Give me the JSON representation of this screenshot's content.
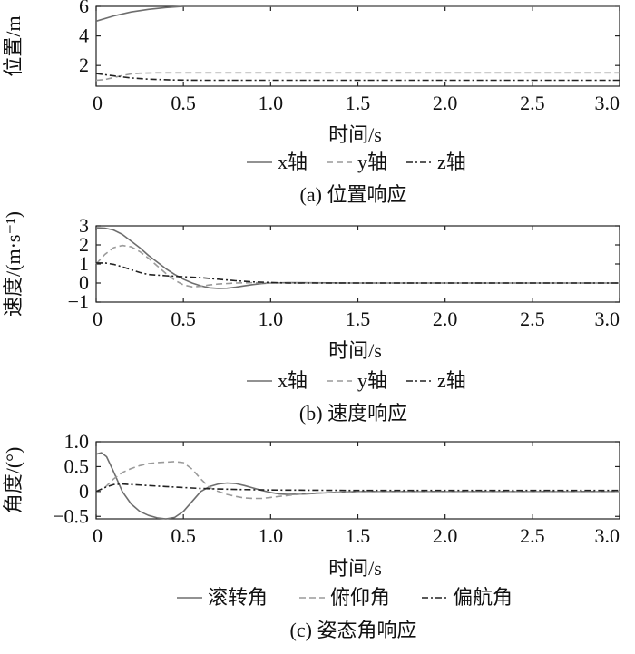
{
  "chart_data": [
    {
      "type": "line",
      "xlabel": "时间/s",
      "ylabel": "位置/m",
      "caption": "(a) 位置响应",
      "xlim": [
        0,
        3.0
      ],
      "ylim": [
        0.6,
        6.0
      ],
      "xticks": [
        "0",
        "0.5",
        "1.0",
        "1.5",
        "2.0",
        "2.5",
        "3.0"
      ],
      "yticks": [
        {
          "value": 2,
          "label": "2"
        },
        {
          "value": 4,
          "label": "4"
        },
        {
          "value": 6,
          "label": "6"
        }
      ],
      "legend_position": "bottom-center",
      "series": [
        {
          "name": "x轴",
          "style": "solid",
          "color": "#6e6e6e",
          "x": [
            0,
            0.1,
            0.2,
            0.3,
            0.4,
            0.5,
            1.0,
            2.0,
            3.0
          ],
          "y": [
            5.0,
            5.35,
            5.62,
            5.8,
            5.92,
            6.0,
            6.0,
            6.0,
            6.0
          ]
        },
        {
          "name": "y轴",
          "style": "dashed",
          "color": "#9a9a9a",
          "x": [
            0,
            0.05,
            0.1,
            0.15,
            0.2,
            0.25,
            0.35,
            0.5,
            1.0,
            2.0,
            3.0
          ],
          "y": [
            1.0,
            1.05,
            1.18,
            1.32,
            1.43,
            1.48,
            1.5,
            1.5,
            1.5,
            1.5,
            1.5
          ]
        },
        {
          "name": "z轴",
          "style": "dashdot",
          "color": "#222222",
          "x": [
            0,
            0.1,
            0.2,
            0.3,
            0.45,
            0.6,
            1.0,
            2.0,
            3.0
          ],
          "y": [
            1.45,
            1.3,
            1.16,
            1.07,
            1.02,
            1.0,
            1.0,
            1.0,
            1.0
          ]
        }
      ]
    },
    {
      "type": "line",
      "xlabel": "时间/s",
      "ylabel": "速度/(m·s⁻¹)",
      "caption": "(b) 速度响应",
      "xlim": [
        0,
        3.0
      ],
      "ylim": [
        -1,
        3
      ],
      "xticks": [
        "0",
        "0.5",
        "1.0",
        "1.5",
        "2.0",
        "2.5",
        "3.0"
      ],
      "yticks": [
        {
          "value": -1,
          "label": "−1"
        },
        {
          "value": 0,
          "label": "0"
        },
        {
          "value": 1,
          "label": "1"
        },
        {
          "value": 2,
          "label": "2"
        },
        {
          "value": 3,
          "label": "3"
        }
      ],
      "legend_position": "bottom-right",
      "series": [
        {
          "name": "x轴",
          "style": "solid",
          "color": "#6e6e6e",
          "x": [
            0,
            0.05,
            0.1,
            0.15,
            0.2,
            0.25,
            0.3,
            0.35,
            0.4,
            0.45,
            0.5,
            0.55,
            0.6,
            0.65,
            0.7,
            0.75,
            0.8,
            0.85,
            0.9,
            0.95,
            1.0,
            1.1,
            1.5,
            3.0
          ],
          "y": [
            2.9,
            2.88,
            2.78,
            2.55,
            2.2,
            1.85,
            1.45,
            1.1,
            0.75,
            0.45,
            0.2,
            0.0,
            -0.15,
            -0.25,
            -0.28,
            -0.27,
            -0.22,
            -0.15,
            -0.08,
            -0.03,
            0.0,
            0.02,
            0.0,
            0.0
          ]
        },
        {
          "name": "y轴",
          "style": "dashed",
          "color": "#9a9a9a",
          "x": [
            0,
            0.05,
            0.1,
            0.15,
            0.2,
            0.25,
            0.3,
            0.35,
            0.4,
            0.45,
            0.5,
            0.55,
            0.6,
            0.65,
            0.7,
            0.8,
            0.9,
            1.0,
            1.5,
            3.0
          ],
          "y": [
            1.0,
            1.5,
            1.85,
            1.97,
            1.9,
            1.65,
            1.3,
            0.9,
            0.5,
            0.15,
            -0.1,
            -0.2,
            -0.17,
            -0.1,
            -0.05,
            0.0,
            0.02,
            0.0,
            0.0,
            0.0
          ]
        },
        {
          "name": "z轴",
          "style": "dashdot",
          "color": "#222222",
          "x": [
            0,
            0.05,
            0.1,
            0.15,
            0.2,
            0.25,
            0.3,
            0.4,
            0.5,
            0.6,
            0.7,
            0.8,
            0.9,
            1.0,
            1.1,
            1.5,
            3.0
          ],
          "y": [
            1.05,
            1.05,
            0.98,
            0.85,
            0.7,
            0.55,
            0.45,
            0.38,
            0.33,
            0.28,
            0.2,
            0.12,
            0.06,
            0.03,
            0.0,
            0.0,
            0.0
          ]
        }
      ]
    },
    {
      "type": "line",
      "xlabel": "时间/s",
      "ylabel": "角度/(°)",
      "caption": "(c) 姿态角响应",
      "xlim": [
        0,
        3.0
      ],
      "ylim": [
        -0.55,
        1.0
      ],
      "xticks": [
        "0",
        "0.5",
        "1.0",
        "1.5",
        "2.0",
        "2.5",
        "3.0"
      ],
      "yticks": [
        {
          "value": -0.5,
          "label": "−0.5"
        },
        {
          "value": 0,
          "label": "0"
        },
        {
          "value": 0.5,
          "label": "0.5"
        },
        {
          "value": 1.0,
          "label": "1.0"
        }
      ],
      "legend_position": "bottom-center",
      "series": [
        {
          "name": "滚转角",
          "style": "solid",
          "color": "#6e6e6e",
          "x": [
            0,
            0.03,
            0.06,
            0.1,
            0.15,
            0.2,
            0.25,
            0.3,
            0.35,
            0.4,
            0.45,
            0.5,
            0.55,
            0.6,
            0.65,
            0.7,
            0.75,
            0.8,
            0.85,
            0.9,
            0.95,
            1.0,
            1.05,
            1.1,
            1.2,
            1.3,
            1.5,
            3.0
          ],
          "y": [
            0.75,
            0.78,
            0.7,
            0.4,
            0.0,
            -0.25,
            -0.4,
            -0.48,
            -0.53,
            -0.55,
            -0.52,
            -0.4,
            -0.2,
            0.0,
            0.1,
            0.15,
            0.17,
            0.16,
            0.12,
            0.07,
            0.02,
            -0.02,
            -0.05,
            -0.06,
            -0.05,
            -0.03,
            0.0,
            0.0
          ]
        },
        {
          "name": "俯仰角",
          "style": "dashed",
          "color": "#9a9a9a",
          "x": [
            0,
            0.05,
            0.1,
            0.15,
            0.2,
            0.25,
            0.3,
            0.35,
            0.4,
            0.45,
            0.5,
            0.55,
            0.6,
            0.65,
            0.7,
            0.75,
            0.8,
            0.85,
            0.9,
            0.95,
            1.0,
            1.1,
            1.2,
            1.5,
            3.0
          ],
          "y": [
            0.0,
            0.08,
            0.25,
            0.38,
            0.46,
            0.52,
            0.56,
            0.58,
            0.59,
            0.6,
            0.58,
            0.45,
            0.25,
            0.08,
            0.0,
            -0.06,
            -0.1,
            -0.13,
            -0.14,
            -0.14,
            -0.12,
            -0.08,
            -0.04,
            0.0,
            0.0
          ]
        },
        {
          "name": "偏航角",
          "style": "dashdot",
          "color": "#222222",
          "x": [
            0,
            0.05,
            0.1,
            0.15,
            0.2,
            0.3,
            0.4,
            0.5,
            0.6,
            0.8,
            1.0,
            1.5,
            3.0
          ],
          "y": [
            0.0,
            0.08,
            0.14,
            0.15,
            0.14,
            0.12,
            0.1,
            0.08,
            0.06,
            0.04,
            0.03,
            0.02,
            0.02
          ]
        }
      ]
    }
  ]
}
